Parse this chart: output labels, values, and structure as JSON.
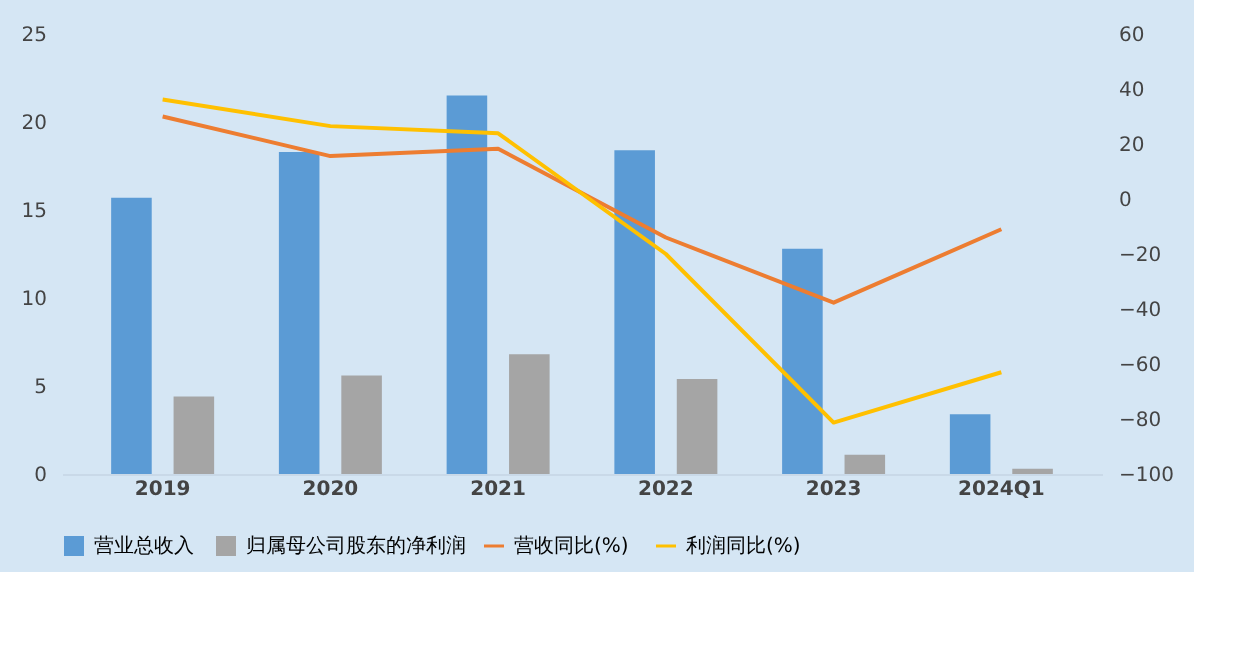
{
  "chart_data": {
    "type": "bar",
    "categories": [
      "2019",
      "2020",
      "2021",
      "2022",
      "2023",
      "2024Q1"
    ],
    "series": [
      {
        "name": "营业总收入",
        "color": "#5b9bd5",
        "values": [
          15.7,
          18.3,
          21.5,
          18.4,
          12.8,
          3.4
        ]
      },
      {
        "name": "归属母公司股东的净利润",
        "color": "#a5a5a5",
        "values": [
          4.4,
          5.6,
          6.8,
          5.4,
          1.1,
          0.3
        ]
      },
      {
        "name": "营收同比(%)",
        "type": "line",
        "axis": "y2",
        "color": "#ed7d31",
        "values": [
          30,
          15.6,
          18.3,
          -14,
          -37.7,
          -11
        ]
      },
      {
        "name": "利润同比(%)",
        "type": "line",
        "axis": "y2",
        "color": "#ffc000",
        "values": [
          36.2,
          26.5,
          23.9,
          -20,
          -81.3,
          -63
        ]
      }
    ],
    "ylim": [
      0,
      25
    ],
    "yticks": [
      0,
      5,
      10,
      15,
      20,
      25
    ],
    "y2lim": [
      -100,
      60
    ],
    "y2ticks": [
      -100,
      -80,
      -60,
      -40,
      -20,
      0,
      20,
      40,
      60
    ],
    "grid": false,
    "legend": "bottom",
    "marker": "none",
    "line_style": "solid"
  }
}
